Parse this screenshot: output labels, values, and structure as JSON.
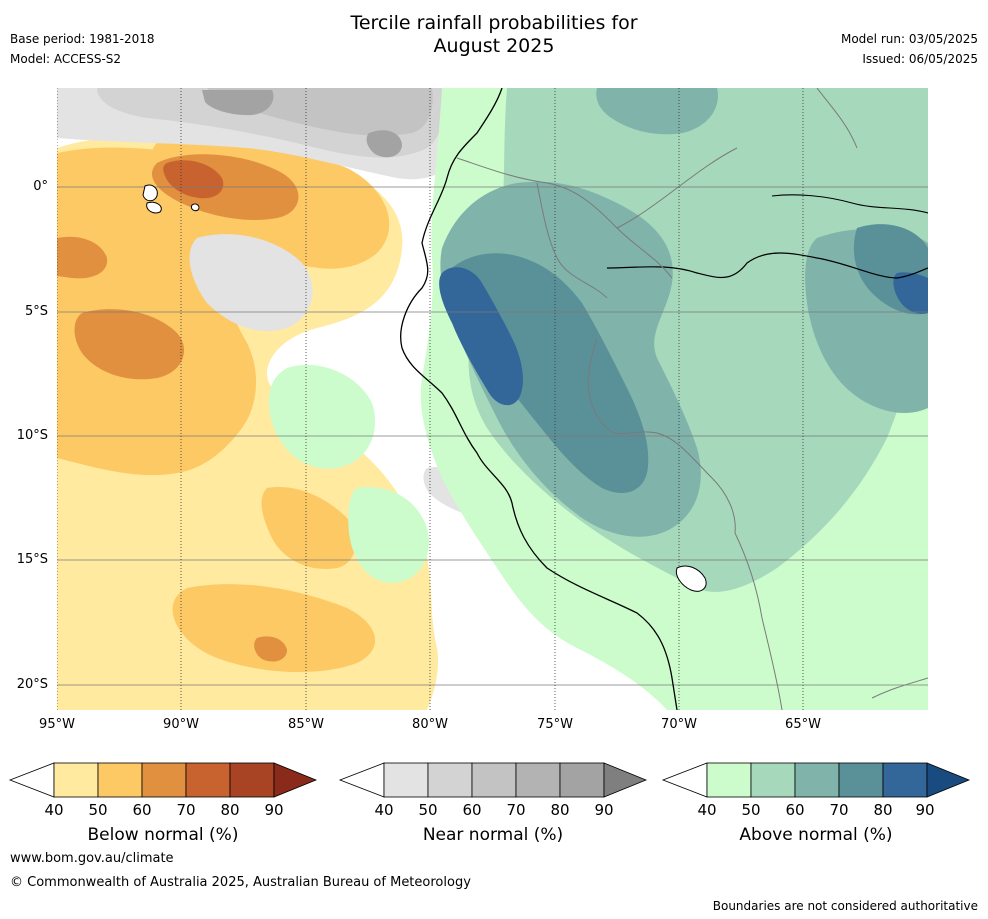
{
  "title_line1": "Tercile rainfall probabilities for",
  "title_line2": "August 2025",
  "base_period": "Base period: 1981-2018",
  "model": "Model: ACCESS-S2",
  "model_run": "Model run: 03/05/2025",
  "issued": "Issued: 06/05/2025",
  "map": {
    "lat_labels": [
      "0°",
      "5°S",
      "10°S",
      "15°S",
      "20°S"
    ],
    "lon_labels": [
      "95°W",
      "90°W",
      "85°W",
      "80°W",
      "75°W",
      "70°W",
      "65°W"
    ],
    "colors": {
      "ocean_white": "#ffffff",
      "below": [
        "#ffeaa0",
        "#fdc965",
        "#e0903f",
        "#c8632f",
        "#a84423",
        "#8a2a1a"
      ],
      "near": [
        "#e3e3e3",
        "#d3d3d3",
        "#c3c3c3",
        "#b3b3b3",
        "#a3a3a3",
        "#7f7f7f"
      ],
      "above": [
        "#ccfccc",
        "#a6d8bc",
        "#80b3aa",
        "#5a9199",
        "#336699",
        "#1a4b80"
      ]
    }
  },
  "colorbars": [
    {
      "name": "below",
      "title": "Below normal (%)",
      "ticks": [
        "40",
        "50",
        "60",
        "70",
        "80",
        "90"
      ]
    },
    {
      "name": "near",
      "title": "Near normal (%)",
      "ticks": [
        "40",
        "50",
        "60",
        "70",
        "80",
        "90"
      ]
    },
    {
      "name": "above",
      "title": "Above normal (%)",
      "ticks": [
        "40",
        "50",
        "60",
        "70",
        "80",
        "90"
      ]
    }
  ],
  "footer_url": "www.bom.gov.au/climate",
  "copyright": "© Commonwealth of Australia 2025, Australian Bureau of Meteorology",
  "disclaimer": "Boundaries are not considered authoritative"
}
